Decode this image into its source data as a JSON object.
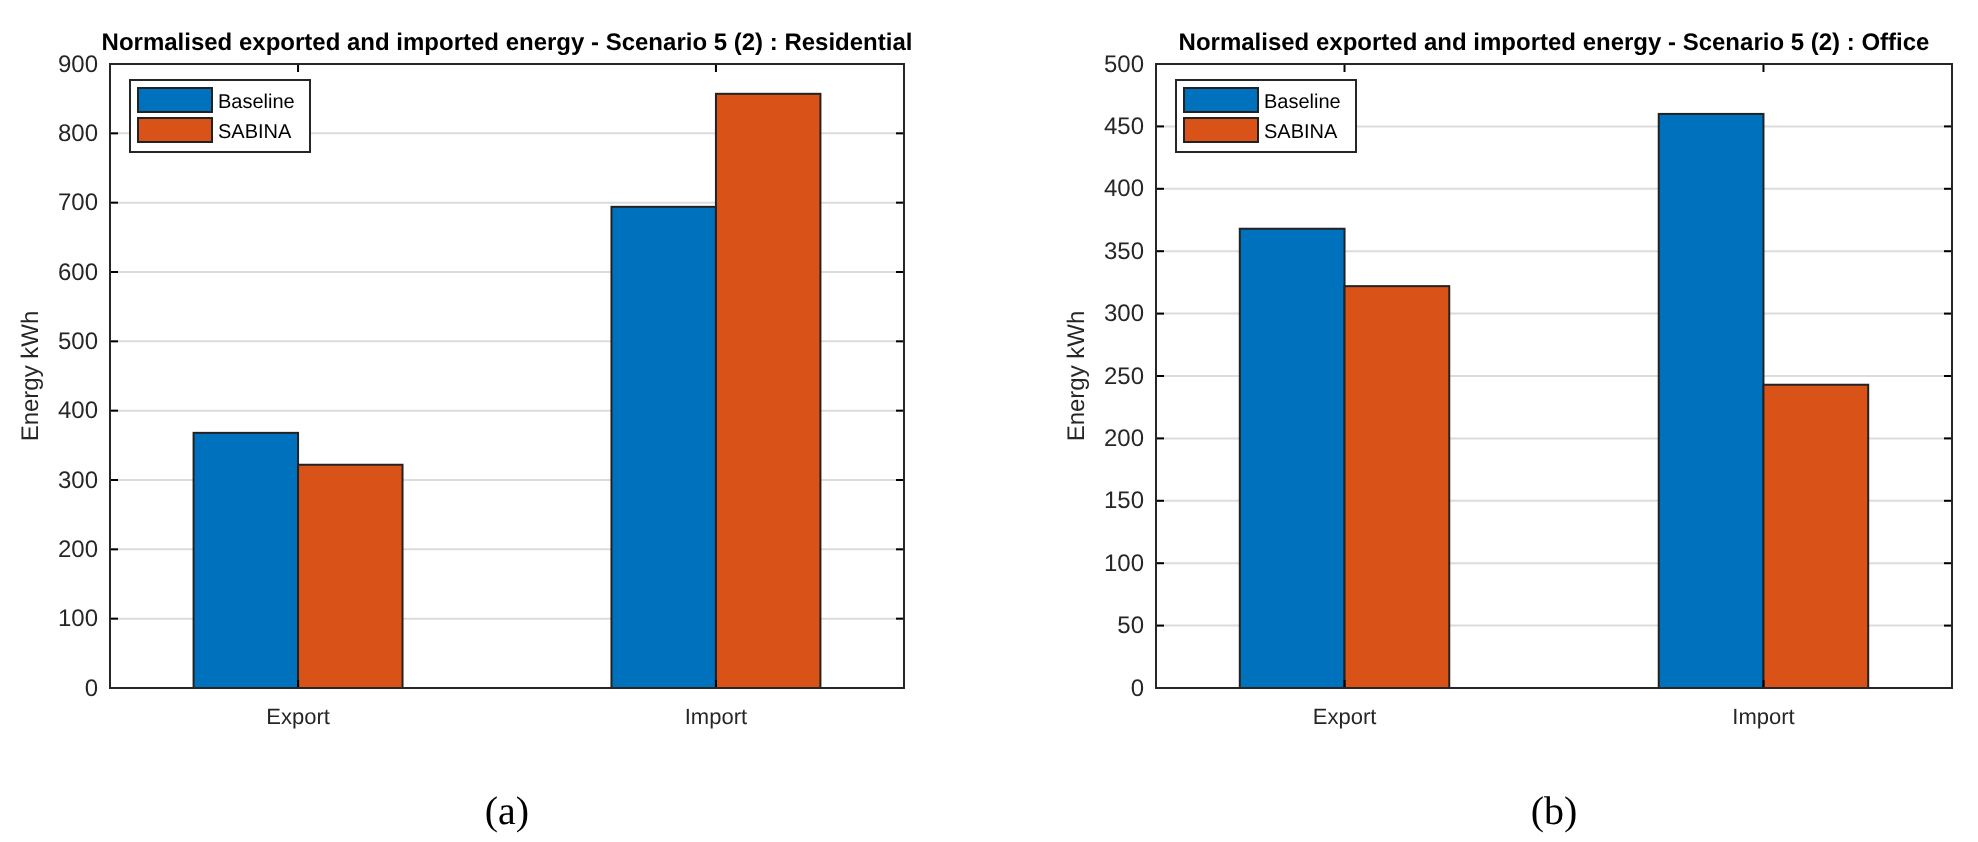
{
  "chart_data": [
    {
      "type": "bar",
      "title": "Normalised exported and imported energy - Scenario 5 (2) : Residential",
      "ylabel": "Energy kWh",
      "categories": [
        "Export",
        "Import"
      ],
      "series": [
        {
          "name": "Baseline",
          "color": "#0072bd",
          "values": [
            368,
            694
          ]
        },
        {
          "name": "SABINA",
          "color": "#d95319",
          "values": [
            322,
            857
          ]
        }
      ],
      "ylim": [
        0,
        900
      ],
      "yticks": [
        0,
        100,
        200,
        300,
        400,
        500,
        600,
        700,
        800,
        900
      ],
      "grid": "y",
      "legend": "top left",
      "annotations": [
        "(a)"
      ]
    },
    {
      "type": "bar",
      "title": "Normalised exported and imported energy - Scenario 5 (2) : Office",
      "ylabel": "Energy kWh",
      "categories": [
        "Export",
        "Import"
      ],
      "series": [
        {
          "name": "Baseline",
          "color": "#0072bd",
          "values": [
            368,
            460
          ]
        },
        {
          "name": "SABINA",
          "color": "#d95319",
          "values": [
            322,
            243
          ]
        }
      ],
      "ylim": [
        0,
        500
      ],
      "yticks": [
        0,
        50,
        100,
        150,
        200,
        250,
        300,
        350,
        400,
        450,
        500
      ],
      "grid": "y",
      "legend": "top left",
      "annotations": [
        "(b)"
      ]
    }
  ]
}
